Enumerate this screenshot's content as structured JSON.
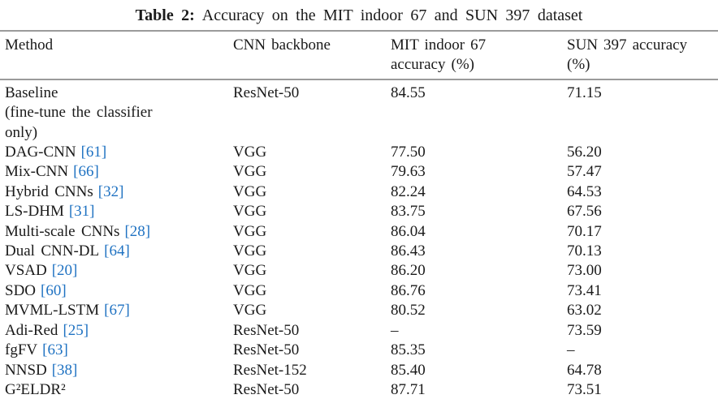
{
  "caption": {
    "label": "Table 2:",
    "text": "Accuracy on the MIT indoor 67 and SUN 397 dataset"
  },
  "colors": {
    "citation_blue": "#1f72c2",
    "text": "#1a1a1a",
    "rule_gray": "#9b9b9b"
  },
  "table": {
    "headers": [
      "Method",
      "CNN backbone",
      "MIT indoor 67\naccuracy (%)",
      "SUN 397 accuracy\n(%)"
    ],
    "rows": [
      {
        "method": "Baseline\n(fine-tune the classifier\nonly)",
        "ref": "",
        "backbone": "ResNet-50",
        "mit": "84.55",
        "sun": "71.15"
      },
      {
        "method": "DAG-CNN",
        "ref": "[61]",
        "backbone": "VGG",
        "mit": "77.50",
        "sun": "56.20"
      },
      {
        "method": "Mix-CNN",
        "ref": "[66]",
        "backbone": "VGG",
        "mit": "79.63",
        "sun": "57.47"
      },
      {
        "method": "Hybrid CNNs",
        "ref": "[32]",
        "backbone": "VGG",
        "mit": "82.24",
        "sun": "64.53"
      },
      {
        "method": "LS-DHM",
        "ref": "[31]",
        "backbone": "VGG",
        "mit": "83.75",
        "sun": "67.56"
      },
      {
        "method": "Multi-scale CNNs",
        "ref": "[28]",
        "backbone": "VGG",
        "mit": "86.04",
        "sun": "70.17"
      },
      {
        "method": "Dual CNN-DL",
        "ref": "[64]",
        "backbone": "VGG",
        "mit": "86.43",
        "sun": "70.13"
      },
      {
        "method": "VSAD",
        "ref": "[20]",
        "backbone": "VGG",
        "mit": "86.20",
        "sun": "73.00"
      },
      {
        "method": "SDO",
        "ref": "[60]",
        "backbone": "VGG",
        "mit": "86.76",
        "sun": "73.41"
      },
      {
        "method": "MVML-LSTM",
        "ref": "[67]",
        "backbone": "VGG",
        "mit": "80.52",
        "sun": "63.02"
      },
      {
        "method": "Adi-Red",
        "ref": "[25]",
        "backbone": "ResNet-50",
        "mit": "–",
        "sun": "73.59"
      },
      {
        "method": "fgFV",
        "ref": "[63]",
        "backbone": "ResNet-50",
        "mit": "85.35",
        "sun": "–"
      },
      {
        "method": "NNSD",
        "ref": "[38]",
        "backbone": "ResNet-152",
        "mit": "85.40",
        "sun": "64.78"
      },
      {
        "method": "G²ELDR²",
        "ref": "",
        "backbone": "ResNet-50",
        "mit": "87.71",
        "sun": "73.51"
      }
    ]
  }
}
